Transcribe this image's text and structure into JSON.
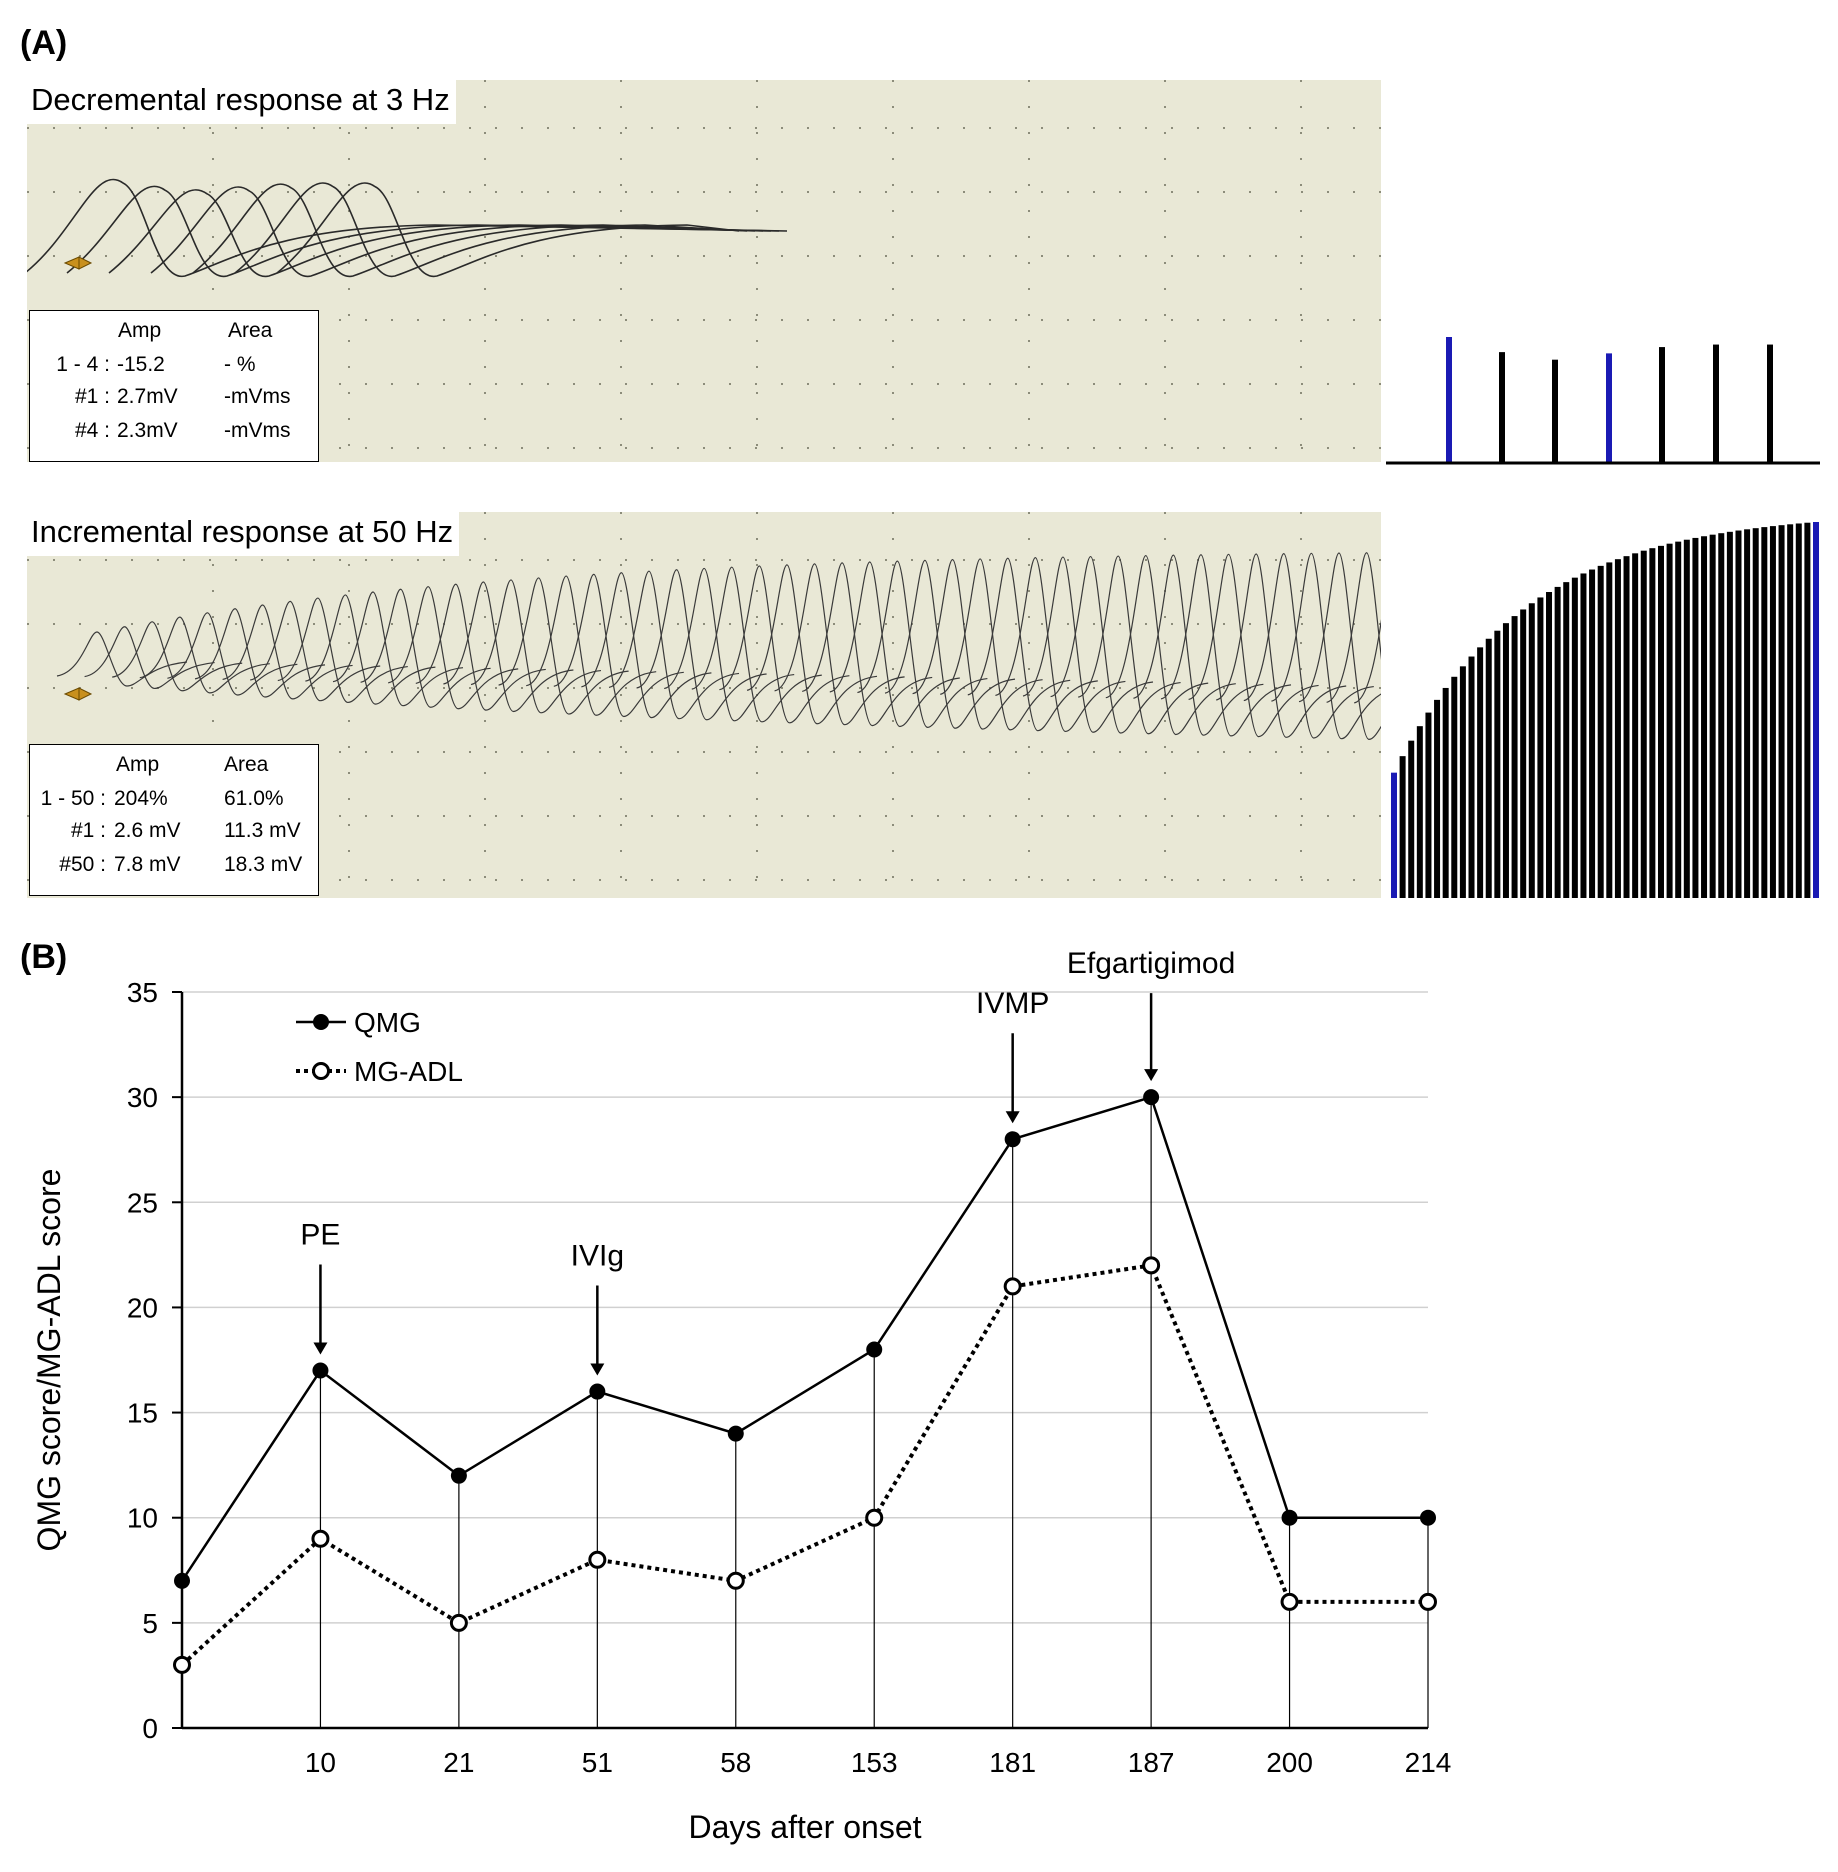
{
  "panel_a": {
    "label": "(A)",
    "decremental": {
      "title": "Decremental response at 3 Hz",
      "stats": {
        "headers": [
          "Amp",
          "Area"
        ],
        "rows": [
          {
            "label": "1 - 4 :",
            "amp": "-15.2",
            "area": "- %"
          },
          {
            "label": "#1 :",
            "amp": "2.7mV",
            "area": "-mVms"
          },
          {
            "label": "#4 :",
            "amp": "2.3mV",
            "area": "-mVms"
          }
        ]
      },
      "bar_heights_relative": [
        1.0,
        0.88,
        0.82,
        0.87,
        0.92,
        0.94,
        0.94
      ],
      "bar_colors": [
        "#1a1ab4",
        "#000000",
        "#000000",
        "#1a1ab4",
        "#000000",
        "#000000",
        "#000000"
      ]
    },
    "incremental": {
      "title": "Incremental response at 50 Hz",
      "stats": {
        "headers": [
          "Amp",
          "Area"
        ],
        "rows": [
          {
            "label": "1 - 50 :",
            "amp": "204%",
            "area": "61.0%"
          },
          {
            "label": "#1 :",
            "amp": "2.6 mV",
            "area": "11.3 mV"
          },
          {
            "label": "#50 :",
            "amp": "7.8 mV",
            "area": "18.3 mV"
          }
        ]
      },
      "first_amp_mV": 2.6,
      "last_amp_mV": 7.8,
      "highlight_color": "#1a1ab4"
    },
    "trace_background": "#e9e8d6",
    "marker_color": "#c8901e"
  },
  "panel_b": {
    "label": "(B)",
    "arrow_labels": [
      "PE",
      "IVIg",
      "IVMP",
      "Efgartigimod"
    ]
  },
  "chart_data": {
    "type": "line",
    "xlabel": "Days after onset",
    "ylabel": "QMG score/MG-ADL score",
    "categories": [
      "",
      "10",
      "21",
      "51",
      "58",
      "153",
      "181",
      "187",
      "200",
      "214"
    ],
    "ylim": [
      0,
      35
    ],
    "yticks": [
      0,
      5,
      10,
      15,
      20,
      25,
      30,
      35
    ],
    "grid": "horizontal",
    "legend_position": "top-left",
    "series": [
      {
        "name": "QMG",
        "values": [
          7,
          17,
          12,
          16,
          14,
          18,
          28,
          30,
          10,
          10
        ],
        "style": "solid",
        "marker": "filled-circle"
      },
      {
        "name": "MG-ADL",
        "values": [
          3,
          9,
          5,
          8,
          7,
          10,
          21,
          22,
          6,
          6
        ],
        "style": "dotted",
        "marker": "open-circle"
      }
    ],
    "annotations": [
      {
        "text": "PE",
        "category_index": 1,
        "series": "QMG"
      },
      {
        "text": "IVIg",
        "category_index": 3,
        "series": "QMG"
      },
      {
        "text": "IVMP",
        "category_index": 6,
        "series": "QMG"
      },
      {
        "text": "Efgartigimod",
        "category_index": 7,
        "series": "QMG"
      }
    ]
  }
}
